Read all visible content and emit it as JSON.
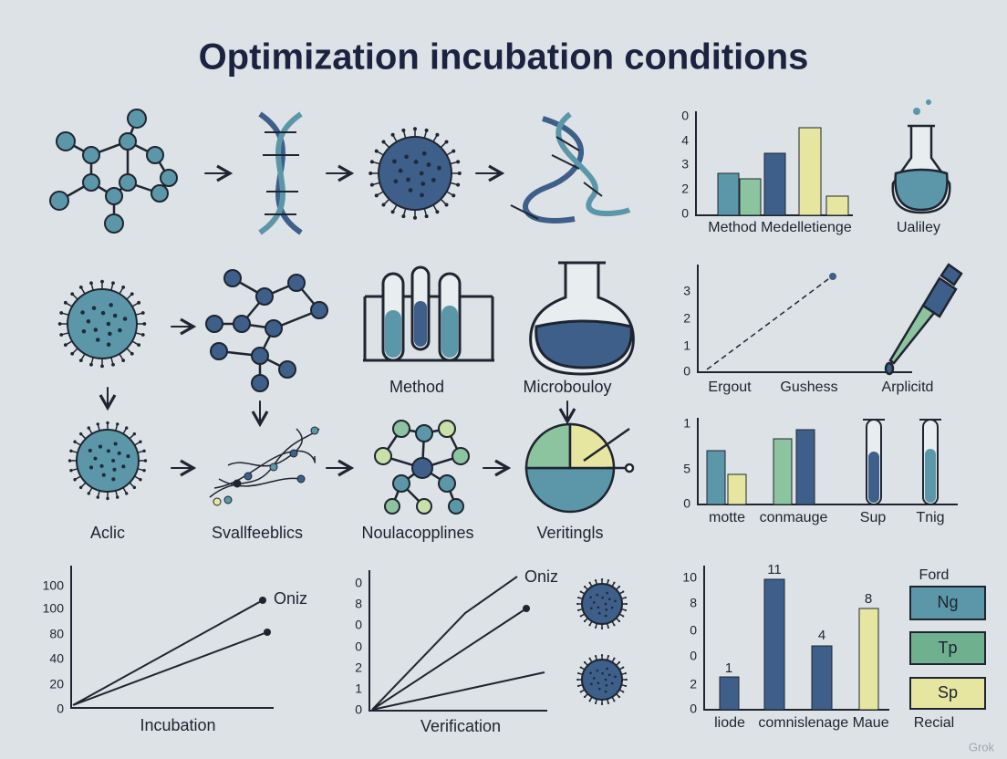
{
  "title": "Optimization incubation conditions",
  "panels": {
    "top_chart": {
      "ticks": [
        "0",
        "4",
        "3",
        "2",
        "0"
      ],
      "labels": [
        "Method Medelletienge",
        "Ualiley"
      ]
    },
    "mid_chart": {
      "ticks": [
        "3",
        "2",
        "1",
        "0"
      ],
      "labels": [
        "Ergout",
        "Gushess",
        "Arplicitd"
      ]
    },
    "middle_labels": [
      "Method",
      "Microbouloy"
    ],
    "row_labels": [
      "Aclic",
      "Svallfeeblics",
      "Noulacopplines",
      "Veritingls"
    ],
    "third_chart": {
      "ticks": [
        "1",
        "5",
        "0"
      ],
      "labels": [
        "motte",
        "conmauge",
        "Sup",
        "Tnig"
      ]
    },
    "incubation_chart": {
      "ticks": [
        "100",
        "100",
        "80",
        "40",
        "20",
        "0"
      ],
      "line_label": "Oniz",
      "xlabel": "Incubation"
    },
    "verification_chart": {
      "ticks": [
        "0",
        "8",
        "0",
        "0",
        "2",
        "1",
        "0"
      ],
      "line_label": "Oniz",
      "xlabel": "Verification"
    },
    "bar_chart": {
      "ticks": [
        "10",
        "8",
        "0",
        "0",
        "2",
        "0"
      ],
      "bar_labels": [
        "1",
        "11",
        "4",
        "8"
      ],
      "labels": [
        "liode",
        "comnislenage Maue"
      ],
      "legend": {
        "title": "Ford",
        "items": [
          "Ng",
          "Tp",
          "Sp"
        ],
        "footer": "Recial"
      }
    }
  },
  "watermark": "Grok"
}
